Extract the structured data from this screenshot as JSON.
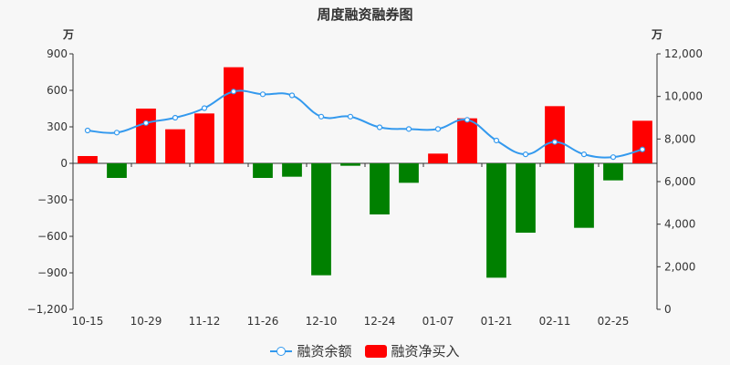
{
  "chart_data": {
    "type": "bar+line",
    "title": "周度融资融券图",
    "left_axis": {
      "unit": "万",
      "ylim": [
        -1200,
        900
      ],
      "ticks": [
        "900",
        "600",
        "300",
        "0",
        "−300",
        "−600",
        "−900",
        "−1,200"
      ]
    },
    "right_axis": {
      "unit": "万",
      "ylim": [
        0,
        12000
      ],
      "ticks": [
        "12,000",
        "10,000",
        "8,000",
        "6,000",
        "4,000",
        "2,000",
        "0"
      ]
    },
    "x_tick_labels": [
      "10-15",
      "10-29",
      "11-12",
      "11-26",
      "12-10",
      "12-24",
      "01-07",
      "01-21",
      "02-11",
      "02-25"
    ],
    "positive_color": "#ff0000",
    "negative_color": "#008000",
    "line_color": "#3399ee",
    "series": [
      {
        "name": "融资净买入",
        "axis": "left",
        "type": "bar",
        "values": [
          60,
          -120,
          450,
          280,
          410,
          790,
          -120,
          -110,
          -920,
          -20,
          -420,
          -160,
          80,
          370,
          -940,
          -570,
          470,
          -530,
          -140,
          350
        ]
      },
      {
        "name": "融资余额",
        "axis": "right",
        "type": "line",
        "values": [
          8400,
          8300,
          8750,
          9000,
          9450,
          10230,
          10100,
          10050,
          9050,
          9050,
          8550,
          8470,
          8470,
          8900,
          7930,
          7280,
          7860,
          7280,
          7150,
          7510
        ]
      }
    ]
  }
}
